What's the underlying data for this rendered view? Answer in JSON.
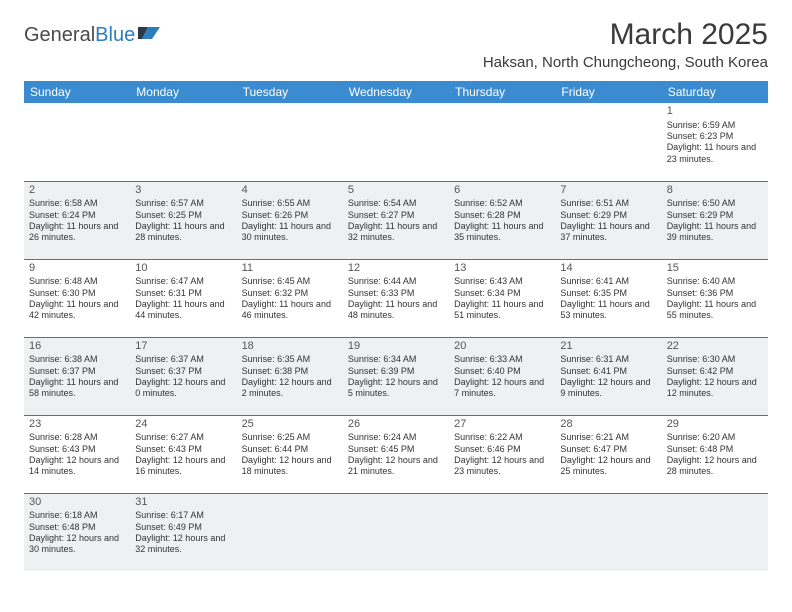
{
  "logo": {
    "text_general": "General",
    "text_blue": "Blue"
  },
  "title": "March 2025",
  "location": "Haksan, North Chungcheong, South Korea",
  "theme": {
    "header_bg": "#3b8bd0",
    "header_text": "#ffffff",
    "border_color": "#2e7cc0",
    "alt_bg": "#eef0f1",
    "body_text": "#333333",
    "daynum_color": "#555555",
    "logo_gray": "#4a4a4a",
    "logo_blue": "#2e7cc0"
  },
  "weekdays": [
    "Sunday",
    "Monday",
    "Tuesday",
    "Wednesday",
    "Thursday",
    "Friday",
    "Saturday"
  ],
  "weeks": [
    [
      null,
      null,
      null,
      null,
      null,
      null,
      {
        "d": "1",
        "sr": "6:59 AM",
        "ss": "6:23 PM",
        "dl": "11 hours and 23 minutes."
      }
    ],
    [
      {
        "d": "2",
        "sr": "6:58 AM",
        "ss": "6:24 PM",
        "dl": "11 hours and 26 minutes."
      },
      {
        "d": "3",
        "sr": "6:57 AM",
        "ss": "6:25 PM",
        "dl": "11 hours and 28 minutes."
      },
      {
        "d": "4",
        "sr": "6:55 AM",
        "ss": "6:26 PM",
        "dl": "11 hours and 30 minutes."
      },
      {
        "d": "5",
        "sr": "6:54 AM",
        "ss": "6:27 PM",
        "dl": "11 hours and 32 minutes."
      },
      {
        "d": "6",
        "sr": "6:52 AM",
        "ss": "6:28 PM",
        "dl": "11 hours and 35 minutes."
      },
      {
        "d": "7",
        "sr": "6:51 AM",
        "ss": "6:29 PM",
        "dl": "11 hours and 37 minutes."
      },
      {
        "d": "8",
        "sr": "6:50 AM",
        "ss": "6:29 PM",
        "dl": "11 hours and 39 minutes."
      }
    ],
    [
      {
        "d": "9",
        "sr": "6:48 AM",
        "ss": "6:30 PM",
        "dl": "11 hours and 42 minutes."
      },
      {
        "d": "10",
        "sr": "6:47 AM",
        "ss": "6:31 PM",
        "dl": "11 hours and 44 minutes."
      },
      {
        "d": "11",
        "sr": "6:45 AM",
        "ss": "6:32 PM",
        "dl": "11 hours and 46 minutes."
      },
      {
        "d": "12",
        "sr": "6:44 AM",
        "ss": "6:33 PM",
        "dl": "11 hours and 48 minutes."
      },
      {
        "d": "13",
        "sr": "6:43 AM",
        "ss": "6:34 PM",
        "dl": "11 hours and 51 minutes."
      },
      {
        "d": "14",
        "sr": "6:41 AM",
        "ss": "6:35 PM",
        "dl": "11 hours and 53 minutes."
      },
      {
        "d": "15",
        "sr": "6:40 AM",
        "ss": "6:36 PM",
        "dl": "11 hours and 55 minutes."
      }
    ],
    [
      {
        "d": "16",
        "sr": "6:38 AM",
        "ss": "6:37 PM",
        "dl": "11 hours and 58 minutes."
      },
      {
        "d": "17",
        "sr": "6:37 AM",
        "ss": "6:37 PM",
        "dl": "12 hours and 0 minutes."
      },
      {
        "d": "18",
        "sr": "6:35 AM",
        "ss": "6:38 PM",
        "dl": "12 hours and 2 minutes."
      },
      {
        "d": "19",
        "sr": "6:34 AM",
        "ss": "6:39 PM",
        "dl": "12 hours and 5 minutes."
      },
      {
        "d": "20",
        "sr": "6:33 AM",
        "ss": "6:40 PM",
        "dl": "12 hours and 7 minutes."
      },
      {
        "d": "21",
        "sr": "6:31 AM",
        "ss": "6:41 PM",
        "dl": "12 hours and 9 minutes."
      },
      {
        "d": "22",
        "sr": "6:30 AM",
        "ss": "6:42 PM",
        "dl": "12 hours and 12 minutes."
      }
    ],
    [
      {
        "d": "23",
        "sr": "6:28 AM",
        "ss": "6:43 PM",
        "dl": "12 hours and 14 minutes."
      },
      {
        "d": "24",
        "sr": "6:27 AM",
        "ss": "6:43 PM",
        "dl": "12 hours and 16 minutes."
      },
      {
        "d": "25",
        "sr": "6:25 AM",
        "ss": "6:44 PM",
        "dl": "12 hours and 18 minutes."
      },
      {
        "d": "26",
        "sr": "6:24 AM",
        "ss": "6:45 PM",
        "dl": "12 hours and 21 minutes."
      },
      {
        "d": "27",
        "sr": "6:22 AM",
        "ss": "6:46 PM",
        "dl": "12 hours and 23 minutes."
      },
      {
        "d": "28",
        "sr": "6:21 AM",
        "ss": "6:47 PM",
        "dl": "12 hours and 25 minutes."
      },
      {
        "d": "29",
        "sr": "6:20 AM",
        "ss": "6:48 PM",
        "dl": "12 hours and 28 minutes."
      }
    ],
    [
      {
        "d": "30",
        "sr": "6:18 AM",
        "ss": "6:48 PM",
        "dl": "12 hours and 30 minutes."
      },
      {
        "d": "31",
        "sr": "6:17 AM",
        "ss": "6:49 PM",
        "dl": "12 hours and 32 minutes."
      },
      null,
      null,
      null,
      null,
      null
    ]
  ],
  "labels": {
    "sunrise": "Sunrise:",
    "sunset": "Sunset:",
    "daylight": "Daylight:"
  }
}
